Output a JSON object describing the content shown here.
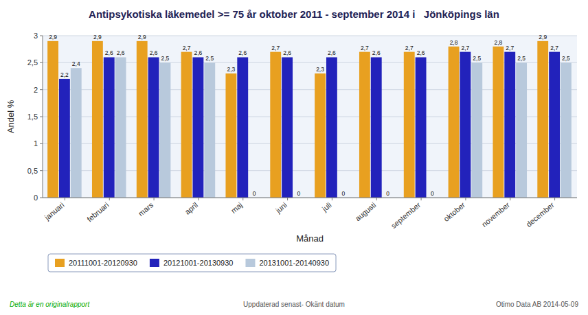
{
  "chart_data": {
    "type": "bar",
    "title": "Antipsykotiska läkemedel >= 75 år oktober 2011 - september 2014 i   Jönköpings län",
    "x_label": "Månad",
    "y_label": "Andel %",
    "categories": [
      "januari",
      "februari",
      "mars",
      "april",
      "maj",
      "juni",
      "juli",
      "augusti",
      "september",
      "oktober",
      "november",
      "december"
    ],
    "series": [
      {
        "name": "20111001-20120930",
        "color": "#E8A020",
        "values": [
          2.9,
          2.9,
          2.9,
          2.7,
          2.3,
          2.7,
          2.3,
          2.7,
          2.7,
          2.8,
          2.8,
          2.9
        ],
        "value_labels": [
          "2,9",
          "2,9",
          "2,9",
          "2,7",
          "2,3",
          "2,7",
          "2,3",
          "2,7",
          "2,7",
          "2,8",
          "2,8",
          "2,9"
        ]
      },
      {
        "name": "20121001-20130930",
        "color": "#2222BB",
        "values": [
          2.2,
          2.6,
          2.6,
          2.6,
          2.6,
          2.6,
          2.6,
          2.6,
          2.6,
          2.7,
          2.7,
          2.7
        ],
        "value_labels": [
          "2,2",
          "2,6",
          "2,6",
          "2,6",
          "2,6",
          "2,6",
          "2,6",
          "2,6",
          "2,6",
          "2,7",
          "2,7",
          "2,7"
        ]
      },
      {
        "name": "20131001-20140930",
        "color": "#B8C9DC",
        "values": [
          2.4,
          2.6,
          2.5,
          2.5,
          0.0,
          0.0,
          0.0,
          0.0,
          0.0,
          2.5,
          2.5,
          2.5
        ],
        "value_labels": [
          "2,4",
          "2,6",
          "2,5",
          "2,5",
          "0",
          "0",
          "0",
          "0",
          "0",
          "2,5",
          "2,5",
          "2,5"
        ]
      }
    ],
    "ylim": [
      0,
      3.0
    ],
    "yticks": [
      0,
      {
        "value": 0.5,
        "label": "0,5"
      },
      1,
      {
        "value": 1.5,
        "label": "1,5"
      },
      2,
      {
        "value": 2.5,
        "label": "2,5"
      },
      3
    ],
    "grid": true,
    "legend": "bottom",
    "data_labels": true,
    "annotations": [
      {
        "text": "Detta är en originalrapport",
        "color": "#00AA00"
      },
      {
        "text": "Uppdaterad senast- Okänt datum",
        "color": "#555555"
      },
      {
        "text": "Otimo Data AB 2014-05-09",
        "color": "#555555"
      }
    ]
  }
}
